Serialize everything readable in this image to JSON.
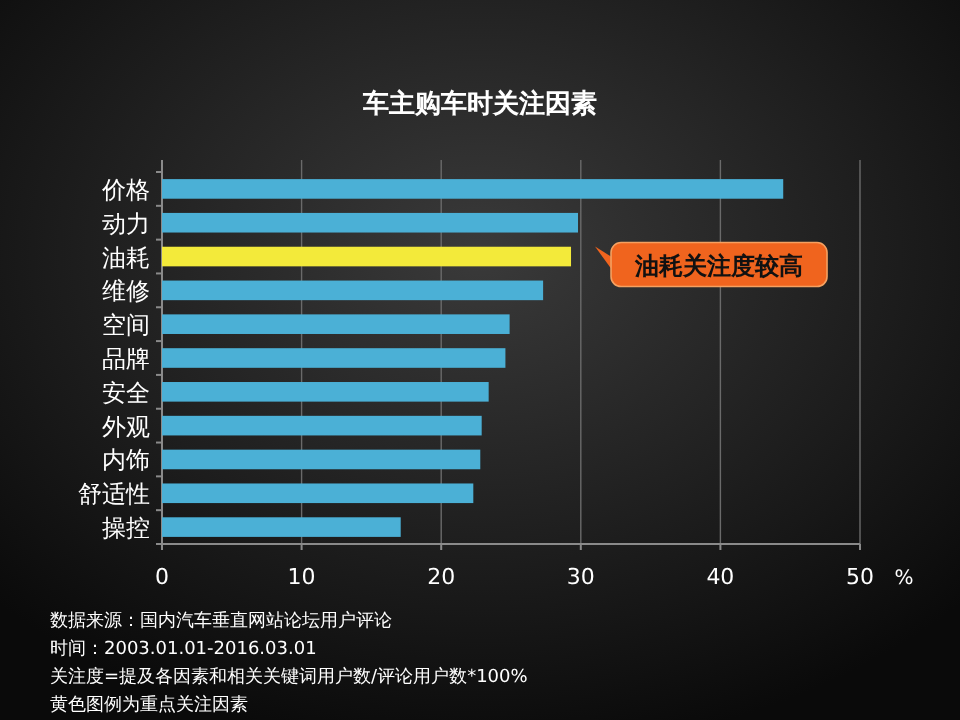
{
  "chart_data": {
    "type": "bar",
    "orientation": "horizontal",
    "title": "车主购车时关注因素",
    "xlabel": "%",
    "categories": [
      "价格",
      "动力",
      "油耗",
      "维修",
      "空间",
      "品牌",
      "安全",
      "外观",
      "内饰",
      "舒适性",
      "操控"
    ],
    "values": [
      44.5,
      29.8,
      29.3,
      27.3,
      24.9,
      24.6,
      23.4,
      22.9,
      22.8,
      22.3,
      17.1
    ],
    "colors": [
      "#4bb0d6",
      "#4bb0d6",
      "#f3ea3a",
      "#4bb0d6",
      "#4bb0d6",
      "#4bb0d6",
      "#4bb0d6",
      "#4bb0d6",
      "#4bb0d6",
      "#4bb0d6",
      "#4bb0d6"
    ],
    "xlim": [
      0,
      50
    ],
    "xticks": [
      0,
      10,
      20,
      30,
      40,
      50
    ],
    "grid": "x",
    "annotations": [
      {
        "text": "油耗关注度较高",
        "x": 29.3,
        "y": "油耗"
      },
      "数据来源：国内汽车垂直网站论坛用户评论",
      "时间：2003.01.01-2016.03.01",
      "关注度=提及各因素和相关关键词用户数/评论用户数*100%",
      "黄色图例为重点关注因素"
    ]
  }
}
